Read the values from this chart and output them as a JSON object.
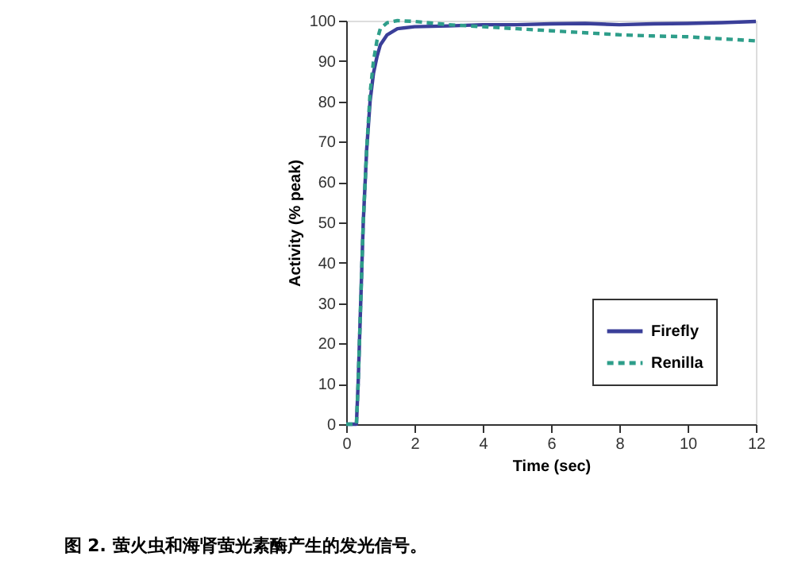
{
  "chart_data": {
    "type": "line",
    "xlabel": "Time (sec)",
    "ylabel": "Activity (% peak)",
    "xlim": [
      0,
      12
    ],
    "xticks": [
      0,
      2,
      4,
      6,
      8,
      10,
      12
    ],
    "ylim": [
      0,
      100
    ],
    "yticks": [
      0,
      10,
      20,
      30,
      40,
      50,
      60,
      70,
      80,
      90,
      100
    ],
    "grid": false,
    "legend": "bottom right",
    "marker": "none",
    "annotations": [
      "图 2. 萤火虫和海肾萤光素酶产生的发光信号。"
    ],
    "series": [
      {
        "name": "Firefly",
        "color": "#3a3f99",
        "line_style": "solid",
        "x": [
          0,
          0.3,
          0.35,
          0.5,
          0.6,
          0.7,
          0.8,
          0.9,
          1.0,
          1.2,
          1.5,
          2,
          3,
          4,
          5,
          6,
          7,
          8,
          9,
          10,
          11,
          12
        ],
        "values": [
          0,
          0,
          10,
          50,
          68,
          80,
          87,
          91,
          94,
          96.5,
          98,
          98.5,
          98.7,
          99,
          99,
          99.2,
          99.3,
          99,
          99.2,
          99.3,
          99.5,
          99.8
        ]
      },
      {
        "name": "Renilla",
        "color": "#2e9e8a",
        "line_style": "dashed",
        "x": [
          0,
          0.3,
          0.35,
          0.5,
          0.6,
          0.7,
          0.8,
          0.9,
          1.0,
          1.2,
          1.5,
          2,
          3,
          4,
          5,
          6,
          7,
          8,
          9,
          10,
          11,
          12
        ],
        "values": [
          0,
          0,
          10,
          50,
          68,
          82,
          90,
          95,
          98,
          99.5,
          100,
          99.8,
          99,
          98.5,
          98,
          97.5,
          97,
          96.5,
          96.2,
          96,
          95.5,
          95
        ]
      }
    ]
  }
}
